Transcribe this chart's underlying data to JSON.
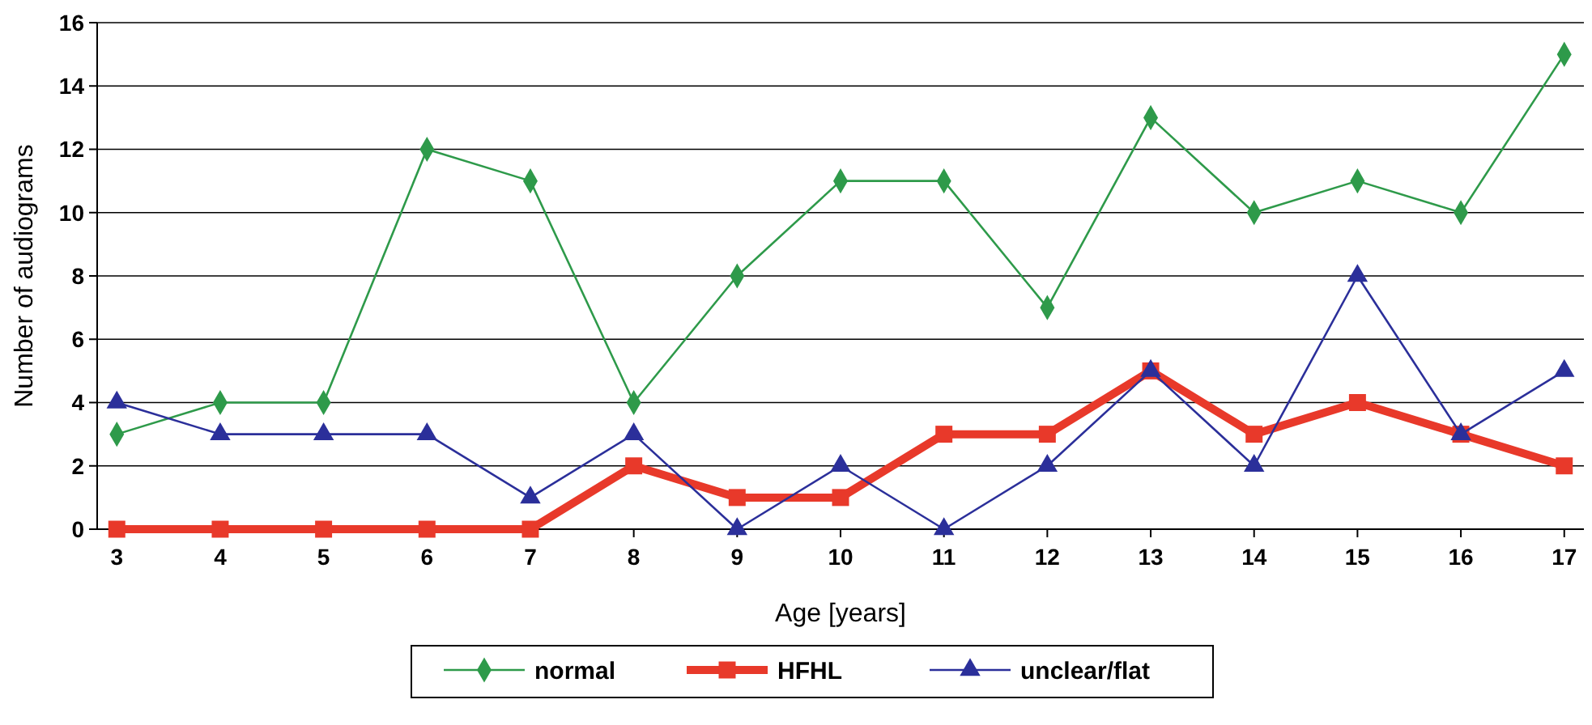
{
  "chart_data": {
    "type": "line",
    "xlabel": "Age [years]",
    "ylabel": "Number of audiograms",
    "categories": [
      "3",
      "4",
      "5",
      "6",
      "7",
      "8",
      "9",
      "10",
      "11",
      "12",
      "13",
      "14",
      "15",
      "16",
      "17"
    ],
    "ylim": [
      0,
      16
    ],
    "yticks": [
      0,
      2,
      4,
      6,
      8,
      10,
      12,
      14,
      16
    ],
    "grid": "y",
    "legend": "bottom",
    "series": [
      {
        "name": "normal",
        "color": "#2e9a4a",
        "marker": "diamond",
        "values": [
          3,
          4,
          4,
          12,
          11,
          4,
          8,
          11,
          11,
          7,
          13,
          10,
          11,
          10,
          15
        ]
      },
      {
        "name": "HFHL",
        "color": "#e8392a",
        "marker": "square",
        "values": [
          0,
          0,
          0,
          0,
          0,
          2,
          1,
          1,
          3,
          3,
          5,
          3,
          4,
          3,
          2
        ]
      },
      {
        "name": "unclear/flat",
        "color": "#2b2f9a",
        "marker": "triangle",
        "values": [
          4,
          3,
          3,
          3,
          1,
          3,
          0,
          2,
          0,
          2,
          5,
          2,
          8,
          3,
          5
        ]
      }
    ]
  }
}
